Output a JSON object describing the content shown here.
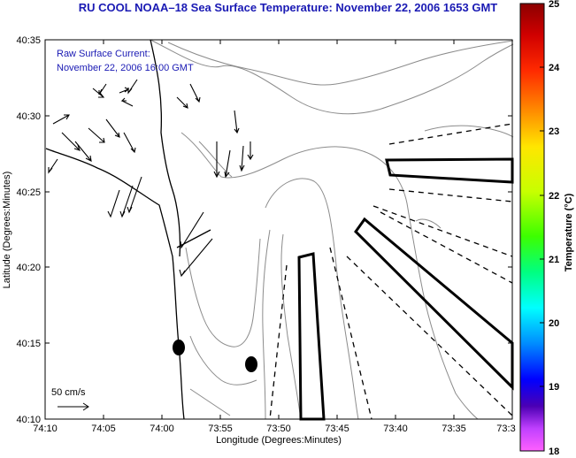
{
  "title": "RU COOL  NOAA–18  Sea Surface Temperature:  November 22, 2006 1653 GMT",
  "annotation": {
    "line1": "Raw Surface Current:",
    "line2": "November 22, 2006 16:00 GMT"
  },
  "scale_label": "50 cm/s",
  "x_axis": {
    "label": "Longitude (Degrees:Minutes)",
    "ticks": [
      "74:10",
      "74:05",
      "74:00",
      "73:55",
      "73:50",
      "73:45",
      "73:40",
      "73:35",
      "73:3"
    ]
  },
  "y_axis": {
    "label": "Latitude (Degrees:Minutes)",
    "ticks": [
      "40:35",
      "40:30",
      "40:25",
      "40:20",
      "40:15",
      "40:10"
    ]
  },
  "colorbar": {
    "label": "Temperature (°C)",
    "min": 18,
    "max": 25,
    "ticks": [
      "25",
      "24",
      "23",
      "22",
      "21",
      "20",
      "19",
      "18"
    ]
  },
  "colors": {
    "title": "#1a1ab4",
    "annotation": "#1a1ab4",
    "contour": "#8c8c8c",
    "coast": "#000000"
  }
}
